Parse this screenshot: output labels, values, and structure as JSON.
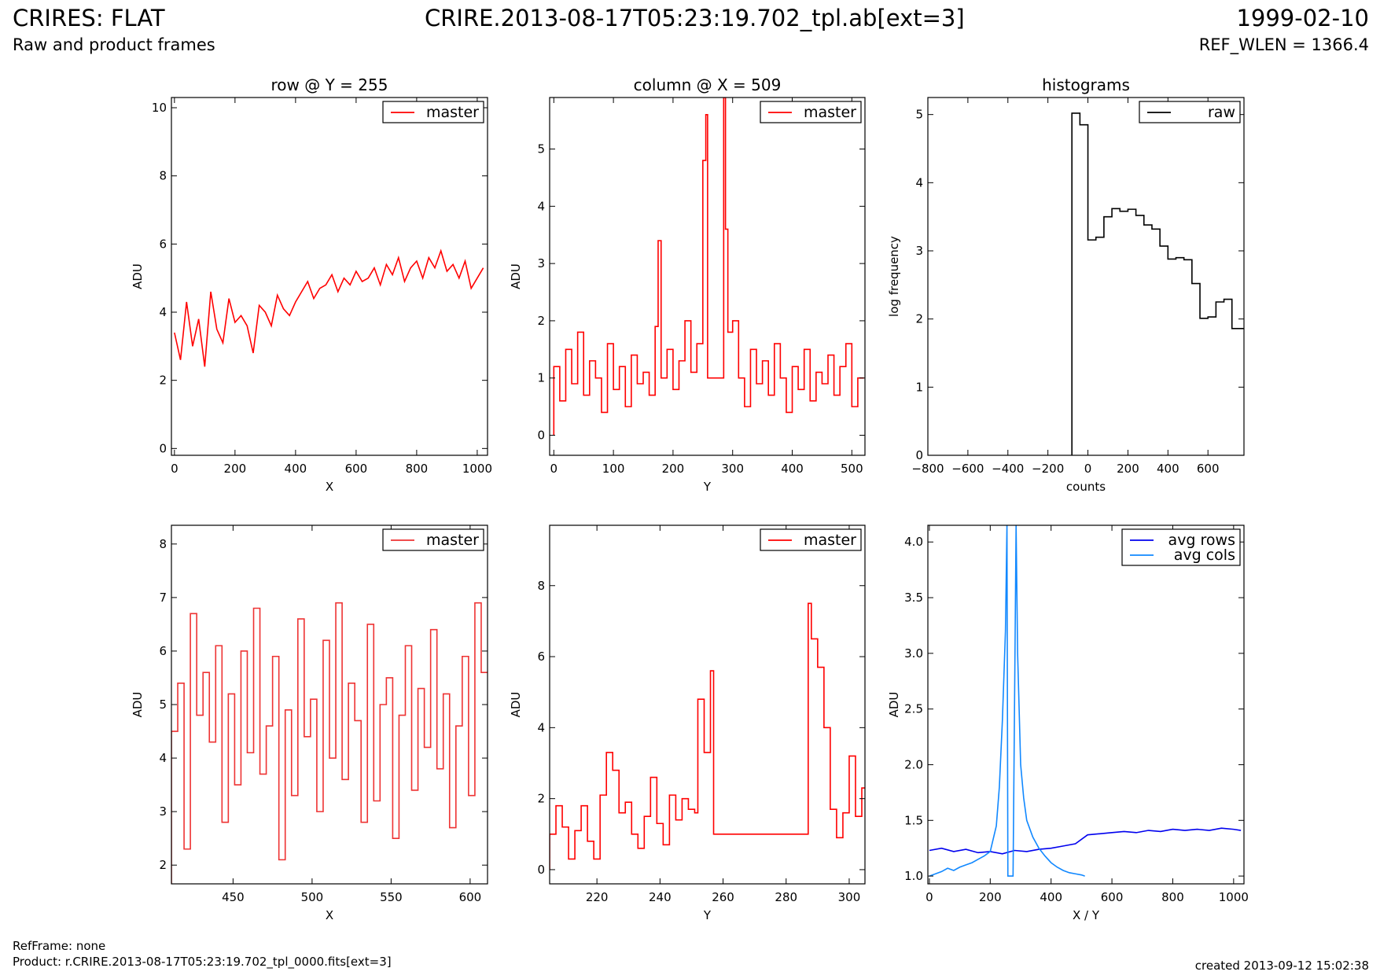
{
  "header": {
    "title": "CRIRES: FLAT",
    "subtitle": "Raw and product frames",
    "file": "CRIRE.2013-08-17T05:23:19.702_tpl.ab[ext=3]",
    "date": "1999-02-10",
    "ref_wlen": "REF_WLEN = 1366.4"
  },
  "footer": {
    "refframe": "RefFrame: none",
    "product": "Product: r.CRIRE.2013-08-17T05:23:19.702_tpl_0000.fits[ext=3]",
    "created": "created 2013-09-12 15:02:38"
  },
  "chart_data": [
    {
      "id": "row",
      "type": "line",
      "title": "row @ Y = 255",
      "xlabel": "X",
      "ylabel": "ADU",
      "xlim": [
        -10,
        1034
      ],
      "ylim": [
        -0.2,
        10.3
      ],
      "xticks": [
        0,
        200,
        400,
        600,
        800,
        1000
      ],
      "yticks": [
        0,
        2,
        4,
        6,
        8,
        10
      ],
      "legend": {
        "position": "top-right",
        "entries": [
          "master"
        ]
      },
      "series": [
        {
          "name": "master",
          "color": "#ff0000",
          "step": false,
          "x": [
            0,
            20,
            40,
            60,
            80,
            100,
            120,
            140,
            160,
            180,
            200,
            220,
            240,
            260,
            280,
            300,
            320,
            340,
            360,
            380,
            400,
            420,
            440,
            460,
            480,
            500,
            520,
            540,
            560,
            580,
            600,
            620,
            640,
            660,
            680,
            700,
            720,
            740,
            760,
            780,
            800,
            820,
            840,
            860,
            880,
            900,
            920,
            940,
            960,
            980,
            1000,
            1020
          ],
          "y": [
            3.4,
            2.6,
            4.3,
            3.0,
            3.8,
            2.4,
            4.6,
            3.5,
            3.1,
            4.4,
            3.7,
            3.9,
            3.6,
            2.8,
            4.2,
            4.0,
            3.6,
            4.5,
            4.1,
            3.9,
            4.3,
            4.6,
            4.9,
            4.4,
            4.7,
            4.8,
            5.1,
            4.6,
            5.0,
            4.8,
            5.2,
            4.9,
            5.0,
            5.3,
            4.8,
            5.4,
            5.1,
            5.6,
            4.9,
            5.3,
            5.5,
            5.0,
            5.6,
            5.3,
            5.8,
            5.2,
            5.4,
            5.0,
            5.5,
            4.7,
            5.0,
            5.3
          ]
        }
      ]
    },
    {
      "id": "column",
      "type": "line",
      "title": "column @ X = 509",
      "xlabel": "Y",
      "ylabel": "ADU",
      "xlim": [
        -7,
        522
      ],
      "ylim": [
        -0.35,
        5.9
      ],
      "xticks": [
        0,
        100,
        200,
        300,
        400,
        500
      ],
      "yticks": [
        0,
        1,
        2,
        3,
        4,
        5
      ],
      "legend": {
        "position": "top-right",
        "entries": [
          "master"
        ]
      },
      "series": [
        {
          "name": "master",
          "color": "#ff0000",
          "step": true,
          "x": [
            0,
            10,
            20,
            30,
            40,
            50,
            60,
            70,
            80,
            90,
            100,
            110,
            120,
            130,
            140,
            150,
            160,
            170,
            175,
            180,
            190,
            200,
            210,
            220,
            230,
            240,
            250,
            255,
            258,
            262,
            265,
            270,
            280,
            285,
            288,
            292,
            300,
            310,
            320,
            330,
            340,
            350,
            360,
            370,
            380,
            390,
            400,
            410,
            420,
            430,
            440,
            450,
            460,
            470,
            480,
            490,
            500,
            510
          ],
          "y": [
            1.2,
            0.6,
            1.5,
            0.9,
            1.8,
            0.7,
            1.3,
            1.0,
            0.4,
            1.6,
            0.8,
            1.2,
            0.5,
            1.4,
            0.9,
            1.1,
            0.7,
            1.9,
            3.4,
            1.0,
            1.5,
            0.8,
            1.3,
            2.0,
            1.1,
            1.6,
            4.8,
            5.6,
            1.0,
            1.0,
            1.0,
            1.0,
            1.0,
            5.9,
            3.6,
            1.8,
            2.0,
            1.0,
            0.5,
            1.5,
            0.9,
            1.3,
            0.7,
            1.6,
            1.0,
            0.4,
            1.2,
            0.8,
            1.5,
            0.6,
            1.1,
            0.9,
            1.4,
            0.7,
            1.2,
            1.6,
            0.5,
            1.0
          ]
        }
      ]
    },
    {
      "id": "histograms",
      "type": "bar",
      "title": "histograms",
      "xlabel": "counts",
      "ylabel": "log frequency",
      "xlim": [
        -800,
        780
      ],
      "ylim": [
        0,
        5.25
      ],
      "xticks": [
        -800,
        -600,
        -400,
        -200,
        0,
        200,
        400,
        600
      ],
      "yticks": [
        0,
        1,
        2,
        3,
        4,
        5
      ],
      "legend": {
        "position": "top-right",
        "entries": [
          "raw"
        ]
      },
      "series": [
        {
          "name": "raw",
          "color": "#000000",
          "step": true,
          "x": [
            -80,
            -40,
            0,
            40,
            80,
            120,
            160,
            200,
            240,
            280,
            320,
            360,
            400,
            440,
            480,
            520,
            560,
            600,
            640,
            680,
            720,
            760
          ],
          "y": [
            5.02,
            4.85,
            3.16,
            3.2,
            3.5,
            3.62,
            3.58,
            3.61,
            3.52,
            3.38,
            3.32,
            3.07,
            2.88,
            2.9,
            2.87,
            2.52,
            2.01,
            2.03,
            2.25,
            2.29,
            1.86,
            1.86
          ]
        }
      ]
    },
    {
      "id": "row-zoom",
      "type": "line",
      "title": "",
      "xlabel": "X",
      "ylabel": "ADU",
      "xlim": [
        411,
        611
      ],
      "ylim": [
        1.65,
        8.35
      ],
      "xticks": [
        450,
        500,
        550,
        600
      ],
      "yticks": [
        2,
        3,
        4,
        5,
        6,
        7,
        8
      ],
      "legend": {
        "position": "top-right",
        "entries": [
          "master"
        ]
      },
      "series": [
        {
          "name": "master",
          "color": "#ee3333",
          "step": true,
          "x": [
            411,
            415,
            419,
            423,
            427,
            431,
            435,
            439,
            443,
            447,
            451,
            455,
            459,
            463,
            467,
            471,
            475,
            479,
            483,
            487,
            491,
            495,
            499,
            503,
            507,
            511,
            515,
            519,
            523,
            527,
            531,
            535,
            539,
            543,
            547,
            551,
            555,
            559,
            563,
            567,
            571,
            575,
            579,
            583,
            587,
            591,
            595,
            599,
            603,
            607
          ],
          "y": [
            4.5,
            5.4,
            2.3,
            6.7,
            4.8,
            5.6,
            4.3,
            6.1,
            2.8,
            5.2,
            3.5,
            6.0,
            4.1,
            6.8,
            3.7,
            4.6,
            5.9,
            2.1,
            4.9,
            3.3,
            6.6,
            4.4,
            5.1,
            3.0,
            6.2,
            4.0,
            6.9,
            3.6,
            5.4,
            4.7,
            2.8,
            6.5,
            3.2,
            5.0,
            5.5,
            2.5,
            4.8,
            6.1,
            3.4,
            5.3,
            4.2,
            6.4,
            3.8,
            5.2,
            2.7,
            4.6,
            5.9,
            3.3,
            6.9,
            5.6
          ]
        }
      ]
    },
    {
      "id": "column-zoom",
      "type": "line",
      "title": "",
      "xlabel": "Y",
      "ylabel": "ADU",
      "xlim": [
        205,
        305
      ],
      "ylim": [
        -0.4,
        9.7
      ],
      "xticks": [
        220,
        240,
        260,
        280,
        300
      ],
      "yticks": [
        0,
        2,
        4,
        6,
        8
      ],
      "legend": {
        "position": "top-right",
        "entries": [
          "master"
        ]
      },
      "series": [
        {
          "name": "master",
          "color": "#ff0000",
          "step": true,
          "x": [
            205,
            207,
            209,
            211,
            213,
            215,
            217,
            219,
            221,
            223,
            225,
            227,
            229,
            231,
            233,
            235,
            237,
            239,
            241,
            243,
            245,
            247,
            249,
            251,
            252,
            254,
            256,
            257,
            270,
            286,
            287,
            288,
            290,
            292,
            294,
            296,
            298,
            300,
            302,
            304
          ],
          "y": [
            1.0,
            1.8,
            1.2,
            0.3,
            1.1,
            1.8,
            0.8,
            0.3,
            2.1,
            3.3,
            2.8,
            1.6,
            1.9,
            1.0,
            0.6,
            1.5,
            2.6,
            1.3,
            0.7,
            2.1,
            1.4,
            2.0,
            1.7,
            1.6,
            4.8,
            3.3,
            5.6,
            1.0,
            1.0,
            1.0,
            7.5,
            6.5,
            5.7,
            4.0,
            1.7,
            0.9,
            1.6,
            3.2,
            1.5,
            2.3
          ]
        }
      ]
    },
    {
      "id": "averages",
      "type": "line",
      "title": "",
      "xlabel": "X / Y",
      "ylabel": "ADU",
      "xlim": [
        -5,
        1034
      ],
      "ylim": [
        0.93,
        4.15
      ],
      "xticks": [
        0,
        200,
        400,
        600,
        800,
        1000
      ],
      "yticks": [
        1.0,
        1.5,
        2.0,
        2.5,
        3.0,
        3.5,
        4.0
      ],
      "legend": {
        "position": "top-right",
        "entries": [
          "avg rows",
          "avg cols"
        ]
      },
      "series": [
        {
          "name": "avg rows",
          "color": "#0000ee",
          "step": false,
          "x": [
            0,
            40,
            80,
            120,
            160,
            200,
            240,
            280,
            320,
            360,
            400,
            440,
            480,
            520,
            560,
            600,
            640,
            680,
            720,
            760,
            800,
            840,
            880,
            920,
            960,
            1000,
            1024
          ],
          "y": [
            1.23,
            1.25,
            1.22,
            1.24,
            1.21,
            1.22,
            1.2,
            1.23,
            1.22,
            1.24,
            1.25,
            1.27,
            1.29,
            1.37,
            1.38,
            1.39,
            1.4,
            1.39,
            1.41,
            1.4,
            1.42,
            1.41,
            1.42,
            1.41,
            1.43,
            1.42,
            1.41
          ]
        },
        {
          "name": "avg cols",
          "color": "#1188ff",
          "step": false,
          "x": [
            0,
            20,
            40,
            60,
            80,
            100,
            120,
            140,
            160,
            180,
            200,
            220,
            230,
            240,
            250,
            255,
            258,
            265,
            275,
            285,
            290,
            295,
            300,
            310,
            320,
            340,
            360,
            380,
            400,
            420,
            440,
            460,
            480,
            500,
            511
          ],
          "y": [
            1.0,
            1.02,
            1.04,
            1.07,
            1.05,
            1.08,
            1.1,
            1.12,
            1.15,
            1.18,
            1.22,
            1.45,
            1.8,
            2.4,
            3.2,
            4.15,
            1.0,
            1.0,
            1.0,
            4.15,
            3.0,
            2.5,
            2.0,
            1.7,
            1.5,
            1.35,
            1.25,
            1.18,
            1.12,
            1.08,
            1.05,
            1.03,
            1.02,
            1.01,
            1.0
          ]
        }
      ]
    }
  ]
}
